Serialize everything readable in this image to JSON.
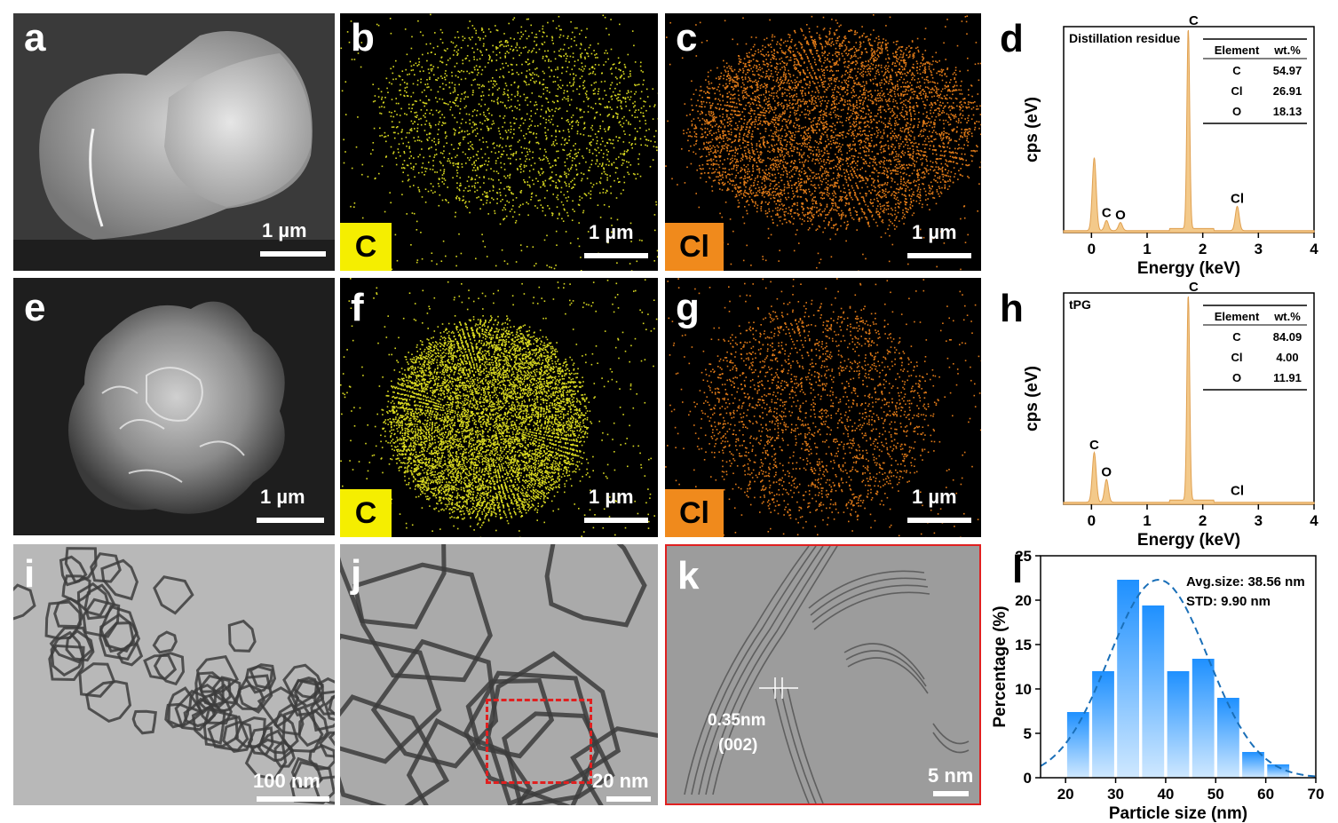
{
  "panels": {
    "a": {
      "label": "a",
      "scale": "1 µm"
    },
    "b": {
      "label": "b",
      "scale": "1 µm",
      "element": "C"
    },
    "c": {
      "label": "c",
      "scale": "1 µm",
      "element": "Cl"
    },
    "d": {
      "label": "d"
    },
    "e": {
      "label": "e",
      "scale": "1 µm"
    },
    "f": {
      "label": "f",
      "scale": "1 µm",
      "element": "C"
    },
    "g": {
      "label": "g",
      "scale": "1 µm",
      "element": "Cl"
    },
    "h": {
      "label": "h"
    },
    "i": {
      "label": "i",
      "scale": "100 nm"
    },
    "j": {
      "label": "j",
      "scale": "20 nm"
    },
    "k": {
      "label": "k",
      "scale": "5 nm",
      "spacing": "0.35nm",
      "plane": "(002)"
    },
    "l": {
      "label": "l"
    }
  },
  "colors": {
    "carbon_map": "#d8d820",
    "chlorine_map": "#e07a18",
    "carbon_box": "#f5ee00",
    "chlorine_box": "#f08a1c",
    "eds_fill": "#f3c98a",
    "eds_line": "#e0a050",
    "bar_top": "#1e90ff",
    "bar_bottom": "#cfe8ff",
    "fit_line": "#1a6fb8",
    "roi_box": "#e02020"
  },
  "chart_data": [
    {
      "type": "area",
      "panel": "d",
      "title": "Distillation residue",
      "xlabel": "Energy (keV)",
      "ylabel": "cps (eV)",
      "xlim": [
        -0.5,
        4
      ],
      "xticks": [
        0,
        1,
        2,
        3,
        4
      ],
      "peaks": [
        {
          "x": 0.05,
          "height": 0.36,
          "label": ""
        },
        {
          "x": 0.27,
          "height": 0.05,
          "label": "C"
        },
        {
          "x": 0.52,
          "height": 0.04,
          "label": "O"
        },
        {
          "x": 1.74,
          "height": 1.0,
          "label": "C"
        },
        {
          "x": 2.62,
          "height": 0.12,
          "label": "Cl"
        }
      ],
      "table": {
        "headers": [
          "Element",
          "wt.%"
        ],
        "rows": [
          [
            "C",
            "54.97"
          ],
          [
            "Cl",
            "26.91"
          ],
          [
            "O",
            "18.13"
          ]
        ]
      }
    },
    {
      "type": "area",
      "panel": "h",
      "title": "tPG",
      "xlabel": "Energy (keV)",
      "ylabel": "cps (eV)",
      "xlim": [
        -0.5,
        4
      ],
      "xticks": [
        0,
        1,
        2,
        3,
        4
      ],
      "peaks": [
        {
          "x": 0.05,
          "height": 0.24,
          "label": "C"
        },
        {
          "x": 0.27,
          "height": 0.11,
          "label": "O"
        },
        {
          "x": 1.74,
          "height": 1.0,
          "label": "C"
        },
        {
          "x": 2.62,
          "height": 0.0,
          "label": "Cl"
        }
      ],
      "table": {
        "headers": [
          "Element",
          "wt.%"
        ],
        "rows": [
          [
            "C",
            "84.09"
          ],
          [
            "Cl",
            "4.00"
          ],
          [
            "O",
            "11.91"
          ]
        ]
      }
    },
    {
      "type": "bar",
      "panel": "l",
      "xlabel": "Particle size (nm)",
      "ylabel": "Percentage (%)",
      "xlim": [
        15,
        70
      ],
      "ylim": [
        0,
        25
      ],
      "xticks": [
        20,
        30,
        40,
        50,
        60,
        70
      ],
      "yticks": [
        0,
        5,
        10,
        15,
        20,
        25
      ],
      "categories": [
        22.5,
        27.5,
        32.5,
        37.5,
        42.5,
        47.5,
        52.5,
        57.5,
        62.5
      ],
      "values": [
        7.4,
        12.0,
        22.3,
        19.4,
        12.0,
        13.4,
        9.0,
        2.9,
        1.5
      ],
      "annotations": [
        "Avg.size: 38.56 nm",
        "STD: 9.90 nm"
      ],
      "fit": {
        "mean": 38.56,
        "std": 9.9,
        "peak": 22.3
      }
    }
  ]
}
